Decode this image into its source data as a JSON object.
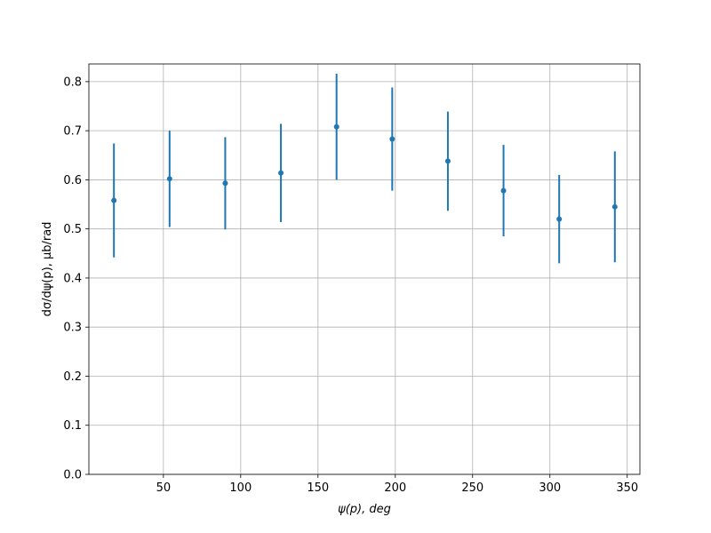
{
  "chart_data": {
    "type": "errorbar",
    "xlabel": "ψ(p), deg",
    "ylabel": "dσ/dψ(p), μb/rad",
    "x": [
      18,
      54,
      90,
      126,
      162,
      198,
      234,
      270,
      306,
      342
    ],
    "series": [
      {
        "color": "#1f77b4",
        "values": [
          0.558,
          0.602,
          0.593,
          0.614,
          0.708,
          0.683,
          0.638,
          0.578,
          0.52,
          0.545
        ],
        "errors": [
          0.116,
          0.098,
          0.094,
          0.1,
          0.108,
          0.105,
          0.101,
          0.093,
          0.09,
          0.113
        ]
      }
    ],
    "xlim": [
      1.8,
      358.2
    ],
    "ylim": [
      0,
      0.836
    ],
    "xticks": [
      50,
      100,
      150,
      200,
      250,
      300,
      350
    ],
    "yticks": [
      {
        "value": 0,
        "label": "0.0"
      },
      0.1,
      0.2,
      0.3,
      0.4,
      0.5,
      0.6,
      0.7,
      0.8
    ],
    "grid": true
  }
}
